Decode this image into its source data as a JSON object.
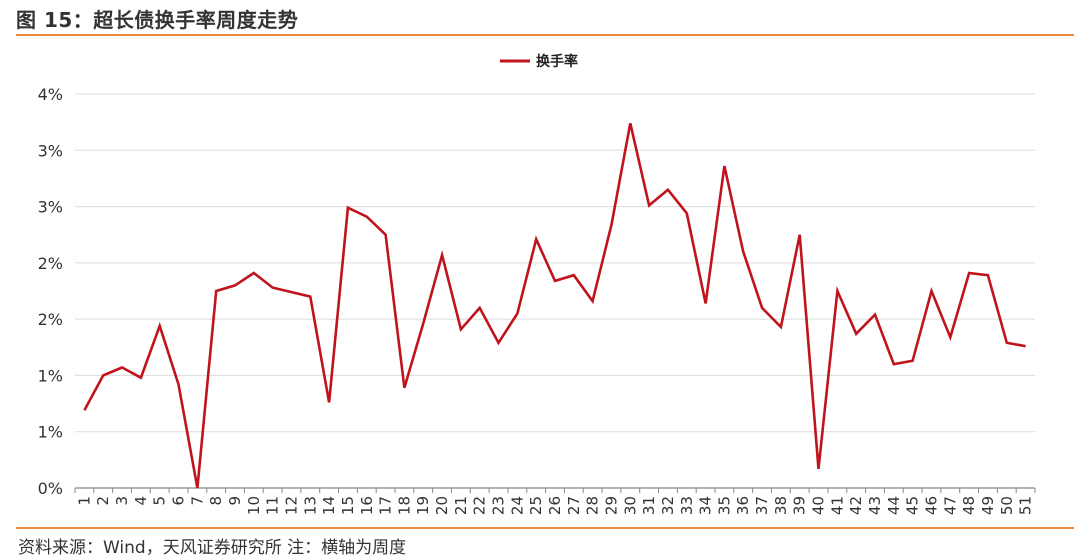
{
  "figure": {
    "title": "图 15：超长债换手率周度走势",
    "source": "资料来源：Wind，天风证券研究所    注：横轴为周度",
    "accent_color": "#f0883a",
    "line_color": "#c0141c"
  },
  "chart_data": {
    "type": "line",
    "title": "",
    "xlabel": "",
    "ylabel": "",
    "x": [
      1,
      2,
      3,
      4,
      5,
      6,
      7,
      8,
      9,
      10,
      11,
      12,
      13,
      14,
      15,
      16,
      17,
      18,
      19,
      20,
      21,
      22,
      23,
      24,
      25,
      26,
      27,
      28,
      29,
      30,
      31,
      32,
      33,
      34,
      35,
      36,
      37,
      38,
      39,
      40,
      41,
      42,
      43,
      44,
      45,
      46,
      47,
      48,
      49,
      50,
      51
    ],
    "ylim": [
      0,
      3.5
    ],
    "y_ticks": [
      0,
      0.5,
      1.0,
      1.5,
      2.0,
      2.5,
      3.0,
      3.5
    ],
    "y_tick_labels": [
      "0%",
      "1%",
      "1%",
      "2%",
      "2%",
      "3%",
      "3%",
      "4%"
    ],
    "legend": {
      "position": "top-center",
      "entries": [
        "换手率"
      ]
    },
    "grid": true,
    "series": [
      {
        "name": "换手率",
        "color": "#c0141c",
        "values": [
          0.69,
          1.0,
          1.07,
          0.98,
          1.44,
          0.92,
          0.0,
          1.75,
          1.8,
          1.91,
          1.78,
          1.74,
          1.7,
          0.76,
          2.49,
          2.41,
          2.25,
          0.89,
          1.46,
          2.07,
          1.41,
          1.6,
          1.29,
          1.55,
          2.21,
          1.84,
          1.89,
          1.66,
          2.34,
          3.24,
          2.51,
          2.65,
          2.44,
          1.64,
          2.86,
          2.1,
          1.6,
          1.43,
          2.25,
          0.17,
          1.75,
          1.37,
          1.54,
          1.1,
          1.13,
          1.75,
          1.34,
          1.91,
          1.89,
          1.29,
          1.26
        ]
      }
    ]
  }
}
